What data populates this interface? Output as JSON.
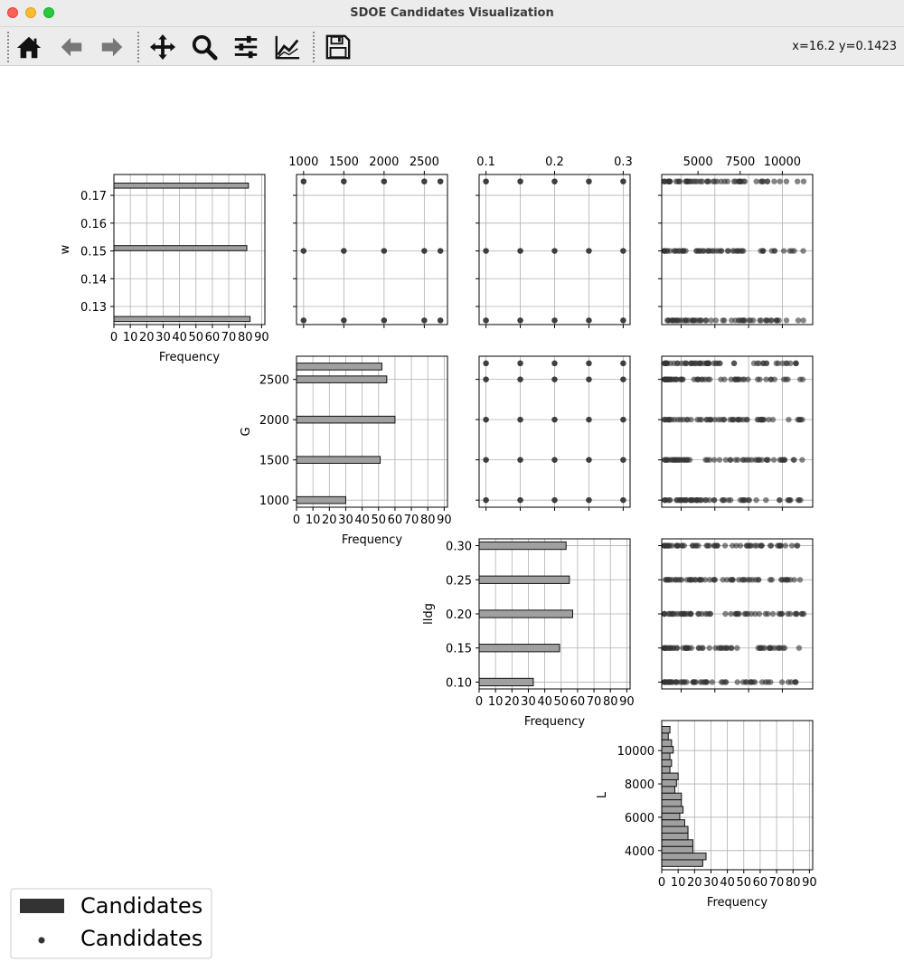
{
  "window": {
    "title": "SDOE Candidates Visualization"
  },
  "toolbar": {
    "buttons": [
      {
        "name": "home-button",
        "icon": "home-icon",
        "enabled": true
      },
      {
        "name": "back-button",
        "icon": "arrow-left-icon",
        "enabled": false
      },
      {
        "name": "forward-button",
        "icon": "arrow-right-icon",
        "enabled": false
      },
      {
        "name": "pan-button",
        "icon": "move-icon",
        "enabled": true
      },
      {
        "name": "zoom-button",
        "icon": "magnifier-icon",
        "enabled": true
      },
      {
        "name": "subplots-button",
        "icon": "sliders-icon",
        "enabled": true
      },
      {
        "name": "customize-button",
        "icon": "chart-line-icon",
        "enabled": true
      },
      {
        "name": "save-button",
        "icon": "floppy-disk-icon",
        "enabled": true
      }
    ],
    "coords_text": "x=16.2 y=0.1423"
  },
  "colors": {
    "bar_fill": "#a0a0a0",
    "bar_edge": "#111111",
    "point": "#333333",
    "grid": "#b0b0b0",
    "legend_patch": "#333333"
  },
  "chart_data": {
    "type": "scatter",
    "layout": "upper-triangular pair plot with histograms on the diagonal",
    "grid": true,
    "variables": [
      {
        "name": "w",
        "ticks": [
          0.13,
          0.14,
          0.15,
          0.16,
          0.17
        ],
        "range": [
          0.1235,
          0.1775
        ]
      },
      {
        "name": "G",
        "ticks": [
          1000,
          1500,
          2000,
          2500
        ],
        "range": [
          912,
          2788
        ]
      },
      {
        "name": "lldg",
        "ticks": [
          0.1,
          0.15,
          0.2,
          0.25,
          0.3
        ],
        "range": [
          0.09,
          0.31
        ]
      },
      {
        "name": "L",
        "ticks": [
          4000,
          6000,
          8000,
          10000
        ],
        "range": [
          2850,
          11800
        ]
      }
    ],
    "top_tick_labels": {
      "G": [
        "1000",
        "1500",
        "2000",
        "2500"
      ],
      "lldg": [
        "0.1",
        "0.2",
        "0.3"
      ],
      "L": [
        "5000",
        "7500",
        "10000"
      ]
    },
    "side_tick_labels": {
      "w": [
        "0.13",
        "0.14",
        "0.15",
        "0.16",
        "0.17"
      ],
      "G": [
        "1000",
        "1500",
        "2000",
        "2500"
      ],
      "lldg": [
        "0.10",
        "0.15",
        "0.20",
        "0.25",
        "0.30"
      ],
      "L": [
        "4000",
        "6000",
        "8000",
        "10000"
      ]
    },
    "histograms": [
      {
        "variable": "w",
        "orientation": "horizontal",
        "bins": [
          {
            "y": 0.1255,
            "count": 83
          },
          {
            "y": 0.151,
            "count": 81
          },
          {
            "y": 0.1735,
            "count": 82
          }
        ],
        "bar_height": 0.0018
      },
      {
        "variable": "G",
        "orientation": "horizontal",
        "bins": [
          {
            "y": 1000,
            "count": 30
          },
          {
            "y": 1500,
            "count": 51
          },
          {
            "y": 2000,
            "count": 60
          },
          {
            "y": 2500,
            "count": 55
          },
          {
            "y": 2660,
            "count": 52
          }
        ],
        "bar_height": 85
      },
      {
        "variable": "lldg",
        "orientation": "horizontal",
        "bins": [
          {
            "y": 0.1,
            "count": 33
          },
          {
            "y": 0.15,
            "count": 49
          },
          {
            "y": 0.2,
            "count": 57
          },
          {
            "y": 0.25,
            "count": 55
          },
          {
            "y": 0.3,
            "count": 53
          }
        ],
        "bar_height": 0.011
      },
      {
        "variable": "L",
        "orientation": "horizontal",
        "bins": [
          {
            "y": 3250,
            "count": 25
          },
          {
            "y": 3650,
            "count": 27
          },
          {
            "y": 4050,
            "count": 19
          },
          {
            "y": 4450,
            "count": 19
          },
          {
            "y": 4850,
            "count": 16
          },
          {
            "y": 5250,
            "count": 16
          },
          {
            "y": 5650,
            "count": 14
          },
          {
            "y": 6050,
            "count": 11
          },
          {
            "y": 6450,
            "count": 13
          },
          {
            "y": 6850,
            "count": 12
          },
          {
            "y": 7250,
            "count": 12
          },
          {
            "y": 7650,
            "count": 8
          },
          {
            "y": 8050,
            "count": 9
          },
          {
            "y": 8450,
            "count": 10
          },
          {
            "y": 8850,
            "count": 5
          },
          {
            "y": 9250,
            "count": 6
          },
          {
            "y": 9650,
            "count": 5
          },
          {
            "y": 10050,
            "count": 7
          },
          {
            "y": 10450,
            "count": 6
          },
          {
            "y": 10850,
            "count": 4
          },
          {
            "y": 11250,
            "count": 5
          }
        ],
        "bar_height": 400
      }
    ],
    "hist_axis": {
      "label": "Frequency",
      "ticks": [
        0,
        10,
        20,
        30,
        40,
        50,
        60,
        70,
        80,
        90
      ],
      "range": [
        0,
        92
      ]
    },
    "scatter": {
      "w_levels": [
        0.125,
        0.15,
        0.175
      ],
      "G_levels": [
        1000,
        1500,
        2000,
        2500,
        2700
      ],
      "lldg_levels": [
        0.1,
        0.15,
        0.2,
        0.25,
        0.3
      ],
      "L_clusters": [
        {
          "min": 3000,
          "max": 11300
        },
        {
          "min": 3000,
          "max": 9500
        }
      ]
    },
    "legend": {
      "position": "lower-left",
      "entries": [
        {
          "label": "Candidates",
          "marker": "patch"
        },
        {
          "label": "Candidates",
          "marker": "dot"
        }
      ]
    }
  }
}
